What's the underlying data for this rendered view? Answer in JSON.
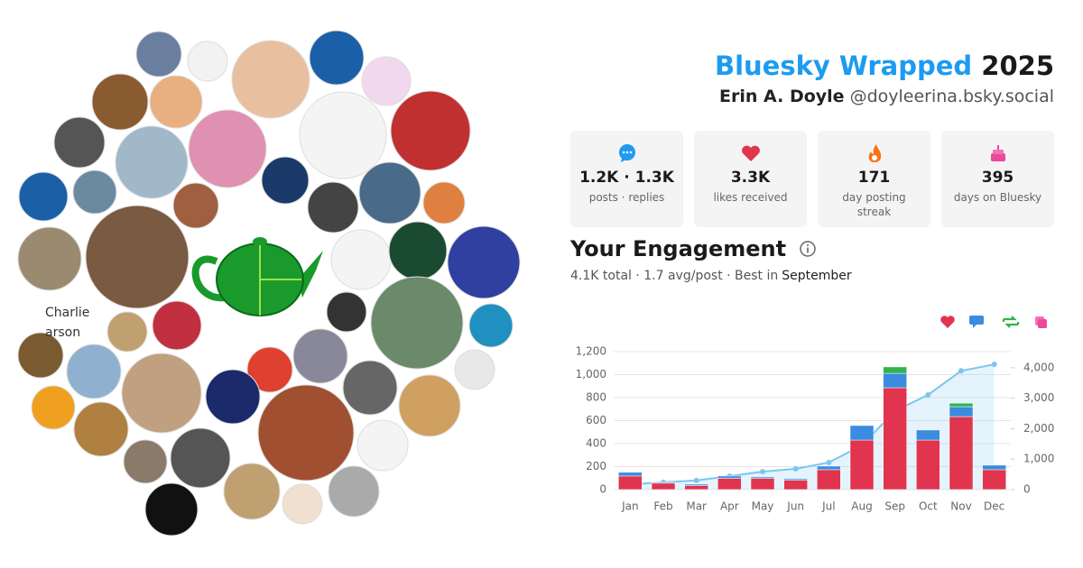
{
  "header": {
    "title": "Bluesky Wrapped",
    "year": "2025",
    "name": "Erin A. Doyle",
    "handle": "@doyleerina.bsky.social"
  },
  "avatars": {
    "broken_image_alt": [
      "Charlie",
      "arson"
    ]
  },
  "stats": [
    {
      "value": "1.2K · 1.3K",
      "label": "posts · replies"
    },
    {
      "value": "3.3K",
      "label": "likes received"
    },
    {
      "value": "171",
      "label": "day posting streak"
    },
    {
      "value": "395",
      "label": "days on Bluesky"
    }
  ],
  "engagement": {
    "title": "Your Engagement",
    "summary": "4.1K total · 1.7 avg/post · Best in",
    "best_month": "September"
  },
  "chart_data": {
    "type": "bar",
    "stacked": true,
    "categories": [
      "Jan",
      "Feb",
      "Mar",
      "Apr",
      "May",
      "Jun",
      "Jul",
      "Aug",
      "Sep",
      "Oct",
      "Nov",
      "Dec"
    ],
    "series": [
      {
        "color": "#e0344f",
        "values": [
          118,
          56,
          35,
          98,
          98,
          82,
          173,
          431,
          886,
          431,
          635,
          173
        ]
      },
      {
        "color": "#3b8be0",
        "values": [
          32,
          7,
          12,
          20,
          12,
          12,
          31,
          126,
          125,
          87,
          86,
          39
        ]
      },
      {
        "color": "#2fb350",
        "values": [
          0,
          0,
          0,
          0,
          0,
          0,
          0,
          0,
          56,
          0,
          31,
          0
        ]
      },
      {
        "type": "line",
        "axis": "y2",
        "color": "#7cc6ee",
        "values": [
          170,
          240,
          300,
          440,
          590,
          680,
          890,
          1450,
          2580,
          3110,
          3900,
          4110
        ]
      }
    ],
    "ylim": [
      0,
      1200
    ],
    "yticks": [
      0,
      200,
      400,
      600,
      800,
      {
        "value": 1000,
        "label": "1,000"
      },
      {
        "value": 1200,
        "label": "1,200"
      }
    ],
    "y2lim": [
      0,
      4530
    ],
    "y2ticks": [
      0,
      {
        "value": 1000,
        "label": "1,000"
      },
      {
        "value": 2000,
        "label": "2,000"
      },
      {
        "value": 3000,
        "label": "3,000"
      },
      {
        "value": 4000,
        "label": "4,000"
      }
    ],
    "grid": true
  }
}
